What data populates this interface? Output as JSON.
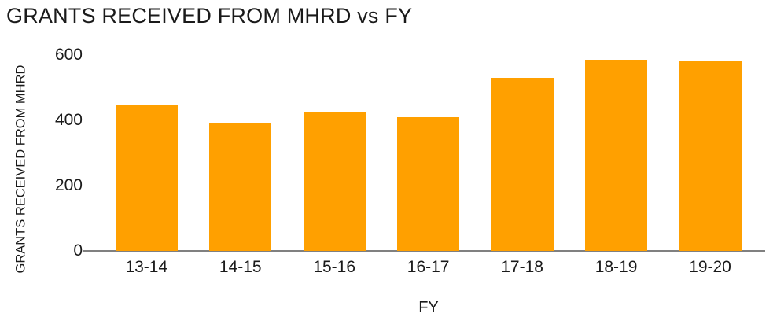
{
  "chart_data": {
    "type": "bar",
    "title": "GRANTS RECEIVED FROM MHRD vs FY",
    "xlabel": "FY",
    "ylabel": "GRANTS RECEIVED FROM MHRD",
    "categories": [
      "13-14",
      "14-15",
      "15-16",
      "16-17",
      "17-18",
      "18-19",
      "19-20"
    ],
    "values": [
      445,
      390,
      425,
      410,
      530,
      585,
      580
    ],
    "ylim": [
      0,
      600
    ],
    "yticks": [
      0,
      200,
      400,
      600
    ],
    "grid": false,
    "legend": false,
    "bar_color": "#FFA000",
    "axis_color": "#808080",
    "text_color": "#1a1a1a"
  }
}
